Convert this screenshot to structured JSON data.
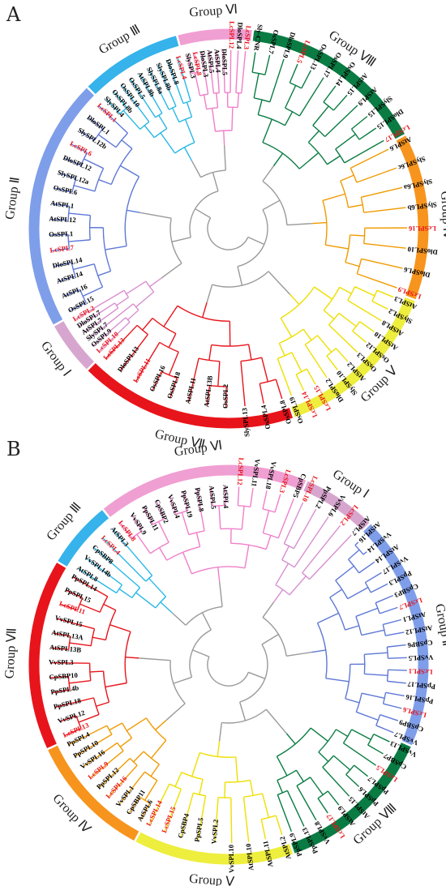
{
  "colors": {
    "gray": "#9a9a9a",
    "red": "#e8141b",
    "highlight": "#e8141b",
    "black": "#000000",
    "g1": "#d7a6cf",
    "g2": "#7f9eea",
    "g3": "#35b3ea",
    "g4": "#f7941d",
    "g5": "#eeee3e",
    "g6": "#f09fd2",
    "g7": "#e8141b",
    "g8": "#0a7c43",
    "g1_branch": "#d88fd0",
    "g2_branch": "#5e78d6",
    "g3_branch": "#2bb8e5",
    "g4_branch": "#f09a00",
    "g5_branch": "#eedf00",
    "g6_branch": "#f07fc9",
    "g7_branch": "#e8141b",
    "g8_branch": "#0a7c43"
  },
  "panels": [
    {
      "letter": "A",
      "groups": [
        {
          "key": "g8",
          "label": "Group Ⅷ",
          "leaves": [
            "Sly-CNR",
            "OsSPL7",
            "DloSPL9",
            "LcSPL5",
            "OsSPL13",
            "OsSPL17",
            "OsSPL14",
            "AtSPL15",
            "AtSPL9",
            "SlySPL15",
            "DloSPL15",
            "LcSPL17"
          ]
        },
        {
          "key": "g4",
          "label": "Group Ⅳ",
          "leaves": [
            "AtSPL6",
            "SlySPL6c",
            "SlySPL6a",
            "SlySPL6b",
            "LcSPL16",
            "DloSPL10",
            "DloSPL6",
            "LcSPL9"
          ]
        },
        {
          "key": "g5",
          "label": "Group Ⅴ",
          "leaves": [
            "AtSPL3",
            "SlySPL2",
            "AtSPL8",
            "AtSPL10",
            "OsSPL12",
            "OsSPL3",
            "AtSPL2",
            "SlySPL10",
            "DloSPL2",
            "LcSPL15",
            "LcSPL14",
            "OsSPL19"
          ]
        },
        {
          "key": "g7",
          "label": "Group Ⅶ",
          "leaves": [
            "OsSPL8",
            "OsSPL4",
            "SlySPL13",
            "OsSPL2",
            "AtSPL13B",
            "AtSPL11",
            "OsSPL18",
            "OsSPL16",
            "LcSPL11",
            "DloSPL13",
            "LcSPL13"
          ]
        },
        {
          "key": "g1",
          "label": "Group Ⅰ",
          "leaves": [
            "LcSPL10",
            "OsSPL9",
            "SlySPL7",
            "AtSPL7",
            "DloSPL7",
            "LcSPL2"
          ]
        },
        {
          "key": "g2",
          "label": "Group Ⅱ",
          "leaves": [
            "OsSPL15",
            "AtSPL16",
            "AtSPL14",
            "DloSPL14",
            "LcSPL7",
            "OsSPL1",
            "AtSPL12",
            "AtSPL1",
            "OsSPL6",
            "SlySPL12a",
            "DloSPL12",
            "LcSPL6",
            "SlySPL12b",
            "DloSPL1",
            "LcSPL1"
          ]
        },
        {
          "key": "g3",
          "label": "Group Ⅲ",
          "leaves": [
            "SlySPL4",
            "OsSPL8b",
            "OsSPL10",
            "OsSPL5",
            "AtSPL8b",
            "SlySPL8a",
            "SlySPL8b",
            "DloSPL8",
            "LcSPL4"
          ]
        },
        {
          "key": "g6",
          "label": "Group Ⅵ",
          "leaves": [
            "SlySPL3",
            "LcSPL8",
            "DloSPL3",
            "AtSPL5",
            "AtSPL4",
            "DloSPL5",
            "LcSPL12",
            "DloSPL4",
            "LcSPL3"
          ]
        }
      ]
    },
    {
      "letter": "B",
      "groups": [
        {
          "key": "g1",
          "label": "Group Ⅰ",
          "leaves": [
            "LcSPL10",
            "PpSPL2",
            "VvSPL6",
            "LcSPL2",
            "AtSPL7"
          ]
        },
        {
          "key": "g2",
          "label": "Group Ⅱ",
          "leaves": [
            "AtSPL16",
            "VvSPL14",
            "AtSPL14",
            "VvSPL17",
            "PpSPL3",
            "CpSBP3",
            "LcSPL7",
            "AtSPL1",
            "AtSPL12",
            "CpSBP6",
            "VvSPL5",
            "LcSPL1",
            "PpSPL17",
            "PpSPL16",
            "LcSPL6",
            "CpSBP9",
            "VvSPL7"
          ]
        },
        {
          "key": "g8",
          "label": "Group Ⅷ",
          "leaves": [
            "VvSPL13",
            "CpSBP7",
            "LcSPL5",
            "PpSPL7",
            "PpSPL6",
            "AtSPL15",
            "AtSPL9",
            "LcSPL17",
            "VvSPL8",
            "PpSPL13",
            "PpSPL9"
          ]
        },
        {
          "key": "g5",
          "label": "Group Ⅴ",
          "leaves": [
            "AtSPL2",
            "AtSPL11",
            "AtSPL10",
            "VvSPL10",
            "VvSPL2",
            "PpSPL5",
            "CpSBP4",
            "LcSPL15",
            "LcSPL14"
          ]
        },
        {
          "key": "g4",
          "label": "Group Ⅳ",
          "leaves": [
            "AtSPL6",
            "CpSBP11",
            "VvSPL1",
            "LcSPL16",
            "PpSPL12",
            "LcSPL9",
            "VvSPL16",
            "PpSPL10",
            "PpSPL4"
          ]
        },
        {
          "key": "g7",
          "label": "Group Ⅶ",
          "leaves": [
            "LcSPL13",
            "VvSPL12",
            "PpSPL18",
            "PpSPL4b",
            "CpSBP10",
            "VvSPL3",
            "AtSPL13B",
            "AtSPL13A",
            "VvSPL15",
            "LcSPL11",
            "PpSPL15",
            "PpSPL14"
          ]
        },
        {
          "key": "g3",
          "label": "Group Ⅲ",
          "leaves": [
            "AtSPL8",
            "VvSPL14b",
            "CpSBP8",
            "LcSPL4",
            "AtSPL3"
          ]
        },
        {
          "key": "g6",
          "label": "Group Ⅵ",
          "leaves": [
            "LcSPL8",
            "VvSPL9",
            "PpSPL11",
            "CpSBP2",
            "VvSPL4",
            "PpSPL19",
            "PpSPL8",
            "AtSPL5",
            "AtSPL4",
            "LcSPL12",
            "VvSPL11",
            "VvSPL18",
            "LcSPL3",
            "CpSBP5"
          ]
        }
      ]
    }
  ]
}
